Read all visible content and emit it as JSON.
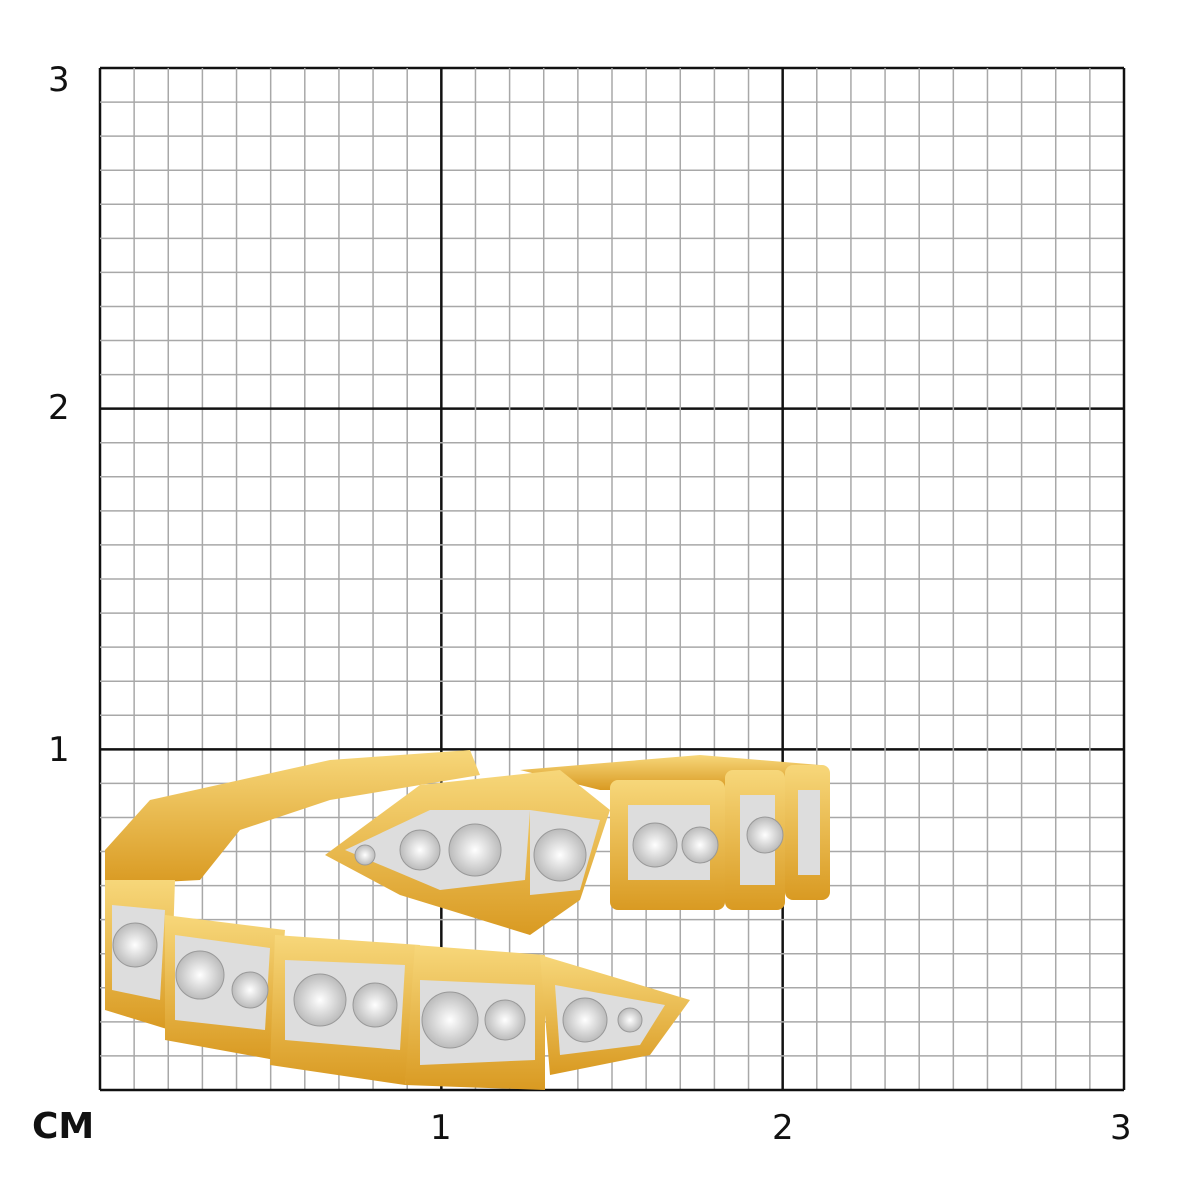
{
  "scale": {
    "unit": "CM",
    "y_labels": [
      "3",
      "2",
      "1"
    ],
    "x_labels": [
      "1",
      "2",
      "3"
    ],
    "range_cm": [
      0,
      3
    ],
    "minor_divisions_per_cm": 10
  },
  "colors": {
    "major_grid": "#111111",
    "minor_grid": "#a8a8a8",
    "gold": "#f0bf45",
    "gold_dark": "#c98e1a",
    "diamond": "#e6e6e6"
  },
  "product": {
    "image": "yellow-gold-serpent-wrap-ring-with-pave-diamonds"
  }
}
